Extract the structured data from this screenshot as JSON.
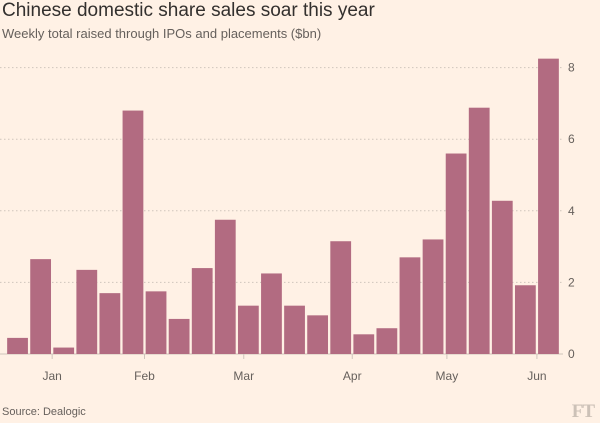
{
  "title": "Chinese domestic share sales soar this year",
  "subtitle": "Weekly total raised through IPOs and placements ($bn)",
  "source": "Source: Dealogic",
  "logo": "FT",
  "colors": {
    "background": "#fff1e5",
    "bar": "#b26b81",
    "grid": "#cfc5bc",
    "text": "#33302e",
    "muted": "#66605c"
  },
  "chart_data": {
    "type": "bar",
    "title": "Chinese domestic share sales soar this year",
    "subtitle": "Weekly total raised through IPOs and placements ($bn)",
    "xlabel": "",
    "ylabel": "",
    "ylim": [
      0,
      8.5
    ],
    "yticks": [
      0,
      2,
      4,
      6,
      8
    ],
    "y_axis_position": "right",
    "grid": true,
    "legend": "none",
    "month_labels": [
      {
        "label": "Jan",
        "week_index": 1.5
      },
      {
        "label": "Feb",
        "week_index": 5.5
      },
      {
        "label": "Mar",
        "week_index": 9.8
      },
      {
        "label": "Apr",
        "week_index": 14.5
      },
      {
        "label": "May",
        "week_index": 18.6
      },
      {
        "label": "Jun",
        "week_index": 22.5
      }
    ],
    "values": [
      0.45,
      2.65,
      0.18,
      2.35,
      1.7,
      6.8,
      1.75,
      0.98,
      2.4,
      3.75,
      1.35,
      2.25,
      1.35,
      1.08,
      3.15,
      0.55,
      0.72,
      2.7,
      3.2,
      5.6,
      6.88,
      4.28,
      1.92,
      8.25
    ]
  }
}
